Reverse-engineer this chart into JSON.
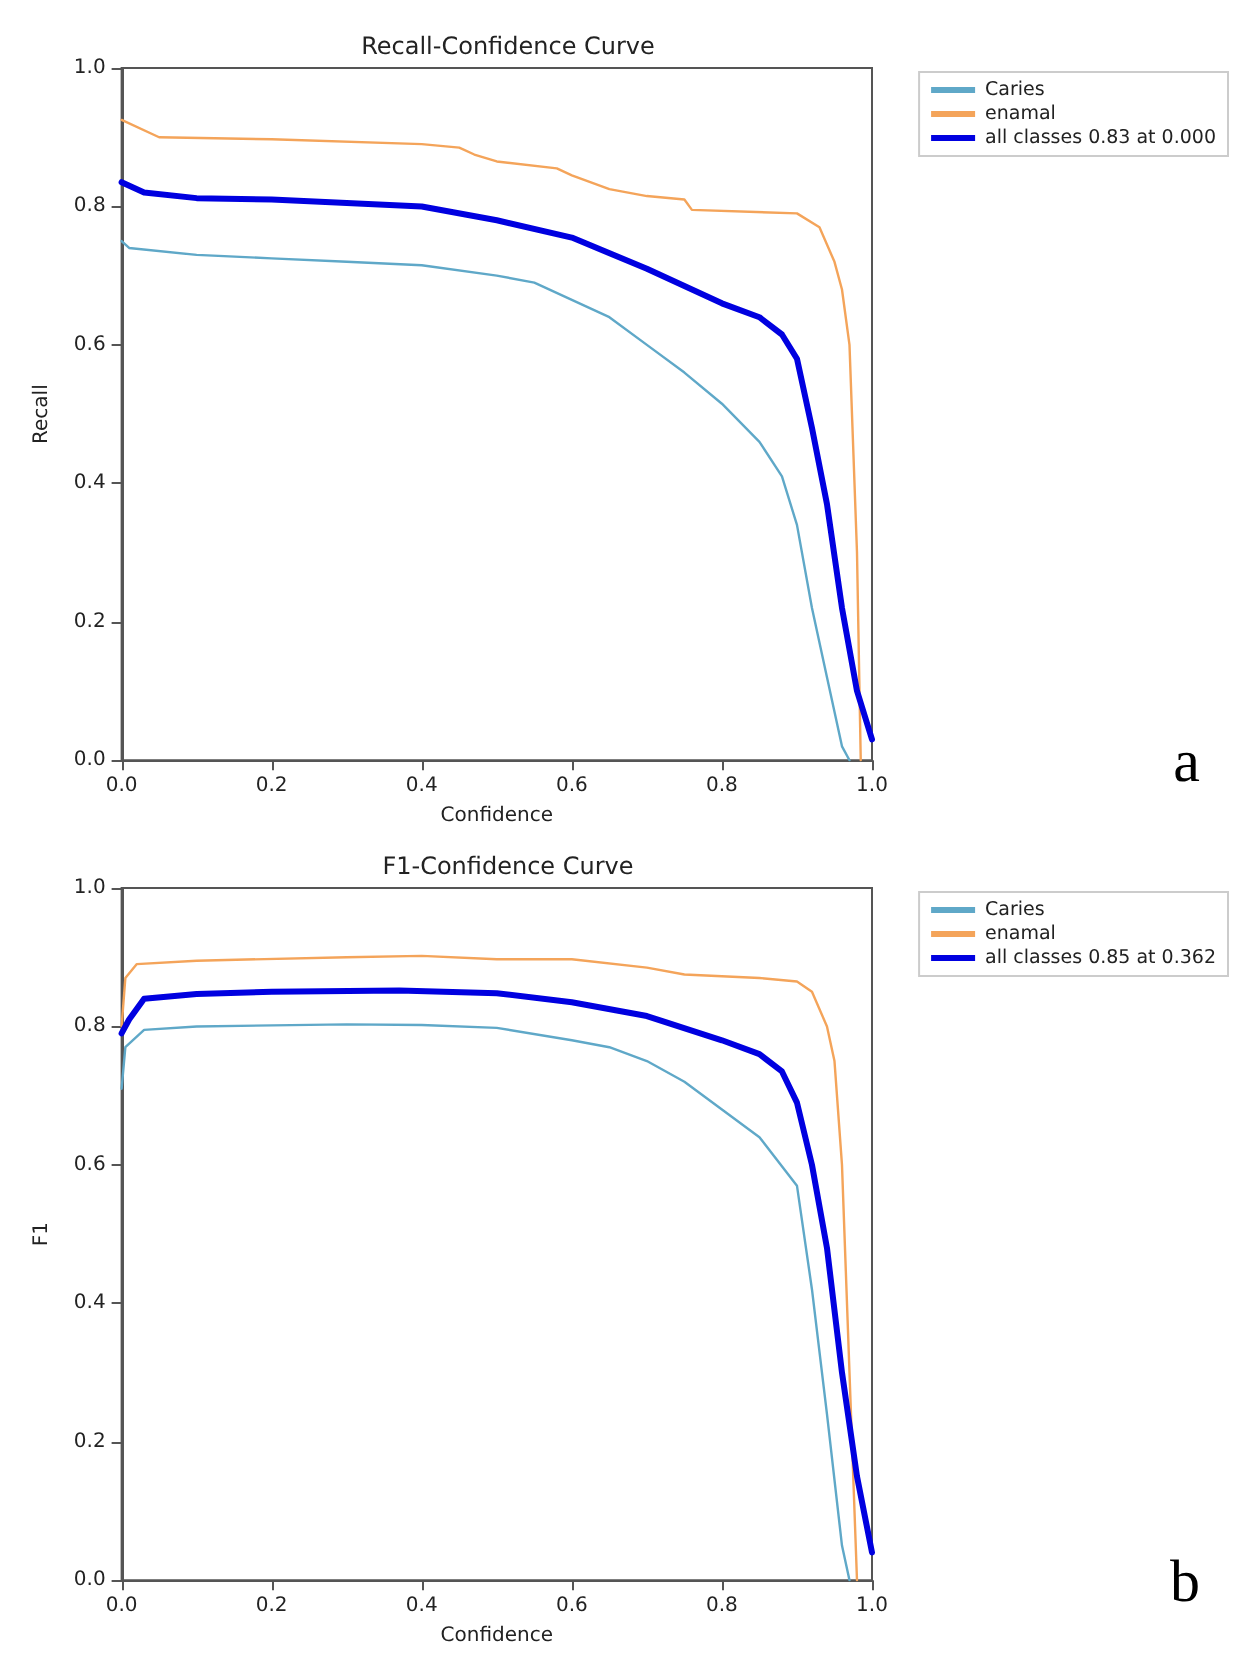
{
  "chart_data": [
    {
      "type": "line",
      "title": "Recall-Confidence Curve",
      "xlabel": "Confidence",
      "ylabel": "Recall",
      "legend": "top right",
      "grid": false,
      "xlim": [
        0,
        1
      ],
      "ylim": [
        0,
        1
      ],
      "xticks": [
        {
          "value": 0,
          "label": "0.0"
        },
        {
          "value": 0.2,
          "label": "0.2"
        },
        {
          "value": 0.4,
          "label": "0.4"
        },
        {
          "value": 0.6,
          "label": "0.6"
        },
        {
          "value": 0.8,
          "label": "0.8"
        },
        {
          "value": 1,
          "label": "1.0"
        }
      ],
      "yticks": [
        {
          "value": 0,
          "label": "0.0"
        },
        {
          "value": 0.2,
          "label": "0.2"
        },
        {
          "value": 0.4,
          "label": "0.4"
        },
        {
          "value": 0.6,
          "label": "0.6"
        },
        {
          "value": 0.8,
          "label": "0.8"
        },
        {
          "value": 1,
          "label": "1.0"
        }
      ],
      "annotations": [
        "a"
      ],
      "series": [
        {
          "name": "Caries",
          "color": "#5fa8c8",
          "x": [
            0,
            0.01,
            0.1,
            0.2,
            0.3,
            0.4,
            0.5,
            0.55,
            0.6,
            0.65,
            0.7,
            0.75,
            0.8,
            0.85,
            0.88,
            0.9,
            0.92,
            0.94,
            0.96,
            0.97
          ],
          "values": [
            0.75,
            0.74,
            0.73,
            0.725,
            0.72,
            0.715,
            0.7,
            0.69,
            0.665,
            0.64,
            0.6,
            0.56,
            0.515,
            0.46,
            0.41,
            0.34,
            0.22,
            0.12,
            0.02,
            0
          ]
        },
        {
          "name": "enamal",
          "color": "#f4a45a",
          "x": [
            0,
            0.05,
            0.2,
            0.4,
            0.45,
            0.47,
            0.5,
            0.58,
            0.6,
            0.65,
            0.7,
            0.75,
            0.76,
            0.9,
            0.93,
            0.95,
            0.96,
            0.97,
            0.98,
            0.985
          ],
          "values": [
            0.925,
            0.9,
            0.897,
            0.89,
            0.885,
            0.875,
            0.865,
            0.855,
            0.845,
            0.825,
            0.815,
            0.81,
            0.795,
            0.79,
            0.77,
            0.72,
            0.68,
            0.6,
            0.3,
            0
          ]
        },
        {
          "name": "all classes 0.83 at 0.000",
          "color": "#0000e0",
          "x": [
            0,
            0.03,
            0.1,
            0.2,
            0.3,
            0.4,
            0.5,
            0.6,
            0.7,
            0.8,
            0.85,
            0.88,
            0.9,
            0.92,
            0.94,
            0.96,
            0.98,
            1
          ],
          "values": [
            0.835,
            0.82,
            0.812,
            0.81,
            0.805,
            0.8,
            0.78,
            0.755,
            0.71,
            0.66,
            0.64,
            0.615,
            0.58,
            0.48,
            0.37,
            0.22,
            0.1,
            0.03
          ]
        }
      ]
    },
    {
      "type": "line",
      "title": "F1-Confidence Curve",
      "xlabel": "Confidence",
      "ylabel": "F1",
      "legend": "top right",
      "grid": false,
      "xlim": [
        0,
        1
      ],
      "ylim": [
        0,
        1
      ],
      "xticks": [
        {
          "value": 0,
          "label": "0.0"
        },
        {
          "value": 0.2,
          "label": "0.2"
        },
        {
          "value": 0.4,
          "label": "0.4"
        },
        {
          "value": 0.6,
          "label": "0.6"
        },
        {
          "value": 0.8,
          "label": "0.8"
        },
        {
          "value": 1,
          "label": "1.0"
        }
      ],
      "yticks": [
        {
          "value": 0,
          "label": "0.0"
        },
        {
          "value": 0.2,
          "label": "0.2"
        },
        {
          "value": 0.4,
          "label": "0.4"
        },
        {
          "value": 0.6,
          "label": "0.6"
        },
        {
          "value": 0.8,
          "label": "0.8"
        },
        {
          "value": 1,
          "label": "1.0"
        }
      ],
      "annotations": [
        "b"
      ],
      "series": [
        {
          "name": "Caries",
          "color": "#5fa8c8",
          "x": [
            0,
            0.005,
            0.03,
            0.1,
            0.3,
            0.4,
            0.5,
            0.6,
            0.65,
            0.7,
            0.75,
            0.8,
            0.85,
            0.9,
            0.92,
            0.94,
            0.96,
            0.97
          ],
          "values": [
            0.71,
            0.77,
            0.795,
            0.8,
            0.803,
            0.802,
            0.798,
            0.78,
            0.77,
            0.75,
            0.72,
            0.68,
            0.64,
            0.57,
            0.42,
            0.24,
            0.05,
            0
          ]
        },
        {
          "name": "enamal",
          "color": "#f4a45a",
          "x": [
            0,
            0.005,
            0.02,
            0.1,
            0.3,
            0.4,
            0.5,
            0.6,
            0.7,
            0.75,
            0.85,
            0.9,
            0.92,
            0.94,
            0.95,
            0.96,
            0.97,
            0.98
          ],
          "values": [
            0.8,
            0.87,
            0.89,
            0.895,
            0.9,
            0.902,
            0.897,
            0.897,
            0.885,
            0.875,
            0.87,
            0.865,
            0.85,
            0.8,
            0.75,
            0.6,
            0.3,
            0
          ]
        },
        {
          "name": "all classes 0.85 at 0.362",
          "color": "#0000e0",
          "x": [
            0,
            0.01,
            0.03,
            0.1,
            0.2,
            0.37,
            0.5,
            0.6,
            0.7,
            0.8,
            0.85,
            0.88,
            0.9,
            0.92,
            0.94,
            0.96,
            0.98,
            1
          ],
          "values": [
            0.79,
            0.81,
            0.84,
            0.847,
            0.85,
            0.852,
            0.848,
            0.835,
            0.815,
            0.78,
            0.76,
            0.735,
            0.69,
            0.6,
            0.48,
            0.3,
            0.15,
            0.04
          ]
        }
      ]
    }
  ]
}
